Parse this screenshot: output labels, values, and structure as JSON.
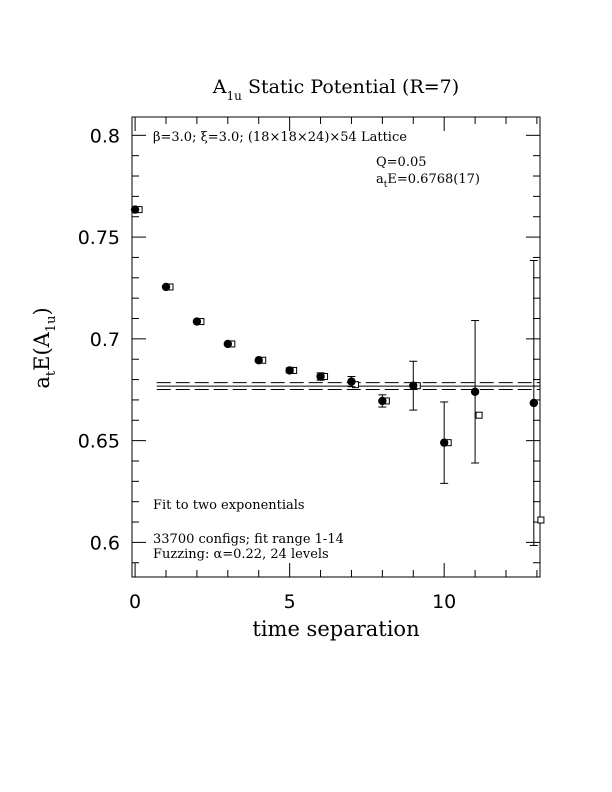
{
  "chart_data": {
    "type": "scatter",
    "title": "A₁ᵤ Static Potential (R=7)",
    "title_parts": [
      "A",
      "1u",
      " Static Potential (R=7)"
    ],
    "xlabel": "time separation",
    "ylabel_parts": [
      "a",
      "t",
      "E(A",
      "1u",
      ")"
    ],
    "xlim": [
      -0.1,
      13.1
    ],
    "ylim": [
      0.583,
      0.809
    ],
    "x_ticks": [
      0,
      5,
      10
    ],
    "y_ticks": [
      0.6,
      0.65,
      0.7,
      0.75,
      0.8
    ],
    "x_tick_labels": [
      "0",
      "5",
      "10"
    ],
    "y_tick_labels": [
      "0.6",
      "0.65",
      "0.7",
      "0.75",
      "0.8"
    ],
    "grid": false,
    "annotations": {
      "lattice": "β=3.0; ξ=3.0; (18×18×24)×54 Lattice",
      "q": "Q=0.05",
      "energy_parts": [
        "a",
        "t",
        "E=0.6768(17)"
      ],
      "fit": "Fit to two exponentials",
      "configs": "33700 configs; fit range 1-14",
      "fuzzing": "Fuzzing: α=0.22, 24 levels"
    },
    "fit_line": {
      "value": 0.6768,
      "error": 0.0017
    },
    "series": [
      {
        "marker": "filled-circle",
        "points": [
          {
            "x": 0,
            "y": 0.7635,
            "err": 0.0005
          },
          {
            "x": 1,
            "y": 0.7255,
            "err": 0.0006
          },
          {
            "x": 2,
            "y": 0.7085,
            "err": 0.0007
          },
          {
            "x": 3,
            "y": 0.6975,
            "err": 0.0008
          },
          {
            "x": 4,
            "y": 0.6895,
            "err": 0.001
          },
          {
            "x": 5,
            "y": 0.6845,
            "err": 0.0012
          },
          {
            "x": 6,
            "y": 0.6815,
            "err": 0.0018
          },
          {
            "x": 7,
            "y": 0.679,
            "err": 0.0025
          },
          {
            "x": 8,
            "y": 0.6695,
            "err": 0.003
          },
          {
            "x": 9,
            "y": 0.677,
            "err": 0.012
          },
          {
            "x": 10,
            "y": 0.649,
            "err": 0.02
          },
          {
            "x": 11,
            "y": 0.674,
            "err": 0.035
          },
          {
            "x": 12.9,
            "y": 0.6685,
            "err": 0.07
          }
        ]
      },
      {
        "marker": "open-square",
        "points": [
          {
            "x": 0,
            "y": 0.7635
          },
          {
            "x": 1,
            "y": 0.7255
          },
          {
            "x": 2,
            "y": 0.7085
          },
          {
            "x": 3,
            "y": 0.6975
          },
          {
            "x": 4,
            "y": 0.6895
          },
          {
            "x": 5,
            "y": 0.6845
          },
          {
            "x": 6,
            "y": 0.6815
          },
          {
            "x": 7,
            "y": 0.6775
          },
          {
            "x": 8,
            "y": 0.6695
          },
          {
            "x": 9,
            "y": 0.677
          },
          {
            "x": 10,
            "y": 0.649
          },
          {
            "x": 11,
            "y": 0.6625
          },
          {
            "x": 13,
            "y": 0.611
          }
        ]
      }
    ]
  }
}
